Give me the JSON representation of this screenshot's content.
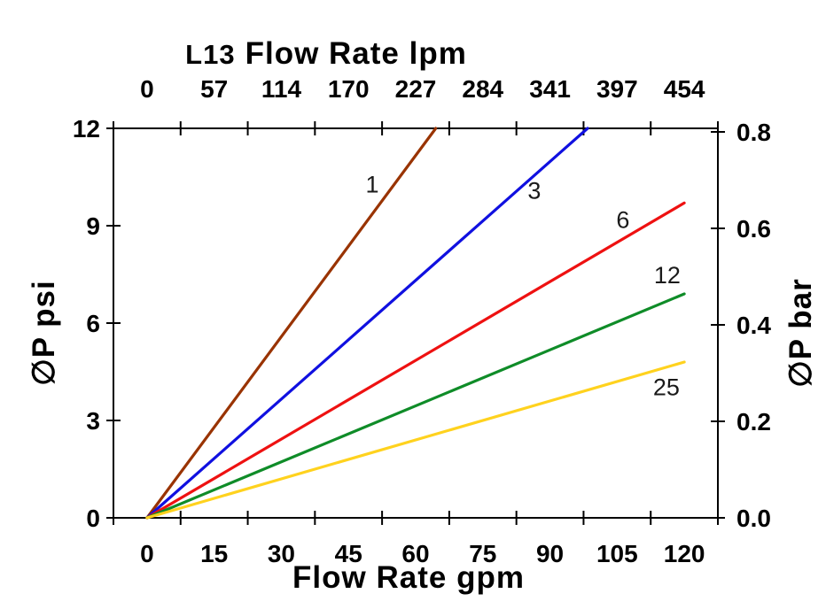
{
  "title": {
    "prefix": "L13",
    "main": "Flow Rate lpm"
  },
  "axes": {
    "top": {
      "tick_labels": [
        "0",
        "57",
        "114",
        "170",
        "227",
        "284",
        "341",
        "397",
        "454"
      ]
    },
    "bottom": {
      "title": "Flow Rate gpm",
      "tick_labels": [
        "0",
        "15",
        "30",
        "45",
        "60",
        "75",
        "90",
        "105",
        "120"
      ]
    },
    "left": {
      "title": "∅P psi",
      "tick_labels": [
        "12",
        "9",
        "6",
        "3",
        "0"
      ],
      "tick_values": [
        12,
        9,
        6,
        3,
        0
      ]
    },
    "right": {
      "title": "∅P bar",
      "tick_labels": [
        "0.8",
        "0.6",
        "0.4",
        "0.2",
        "0.0"
      ],
      "tick_values": [
        0.8,
        0.6,
        0.4,
        0.2,
        0.0
      ]
    }
  },
  "chart_data": {
    "type": "line",
    "title": "L13 Flow Rate lpm",
    "xlabel_bottom": "Flow Rate gpm",
    "xlabel_top": "Flow Rate lpm",
    "ylabel_left": "∅P psi",
    "ylabel_right": "∅P bar",
    "x_gpm_ticks": [
      0,
      15,
      30,
      45,
      60,
      75,
      90,
      105,
      120
    ],
    "x_lpm_ticks": [
      0,
      57,
      114,
      170,
      227,
      284,
      341,
      397,
      454
    ],
    "y_psi_range": [
      0,
      12
    ],
    "y_bar_range": [
      0.0,
      0.8
    ],
    "y_psi_ticks": [
      0,
      3,
      6,
      9,
      12
    ],
    "y_bar_ticks": [
      0.0,
      0.2,
      0.4,
      0.6,
      0.8
    ],
    "grid": false,
    "series": [
      {
        "name": "1",
        "color": "#993300",
        "points": [
          [
            0,
            0
          ],
          [
            64.5,
            12
          ]
        ],
        "label_pos": {
          "gpm": 50.3,
          "psi": 10.3
        }
      },
      {
        "name": "3",
        "color": "#1010E0",
        "points": [
          [
            0,
            0
          ],
          [
            98.4,
            12
          ]
        ],
        "label_pos": {
          "gpm": 86.5,
          "psi": 10.1
        }
      },
      {
        "name": "6",
        "color": "#EE1111",
        "points": [
          [
            0,
            0
          ],
          [
            120,
            9.7
          ]
        ],
        "label_pos": {
          "gpm": 106.3,
          "psi": 9.2
        }
      },
      {
        "name": "12",
        "color": "#0F8C28",
        "points": [
          [
            0,
            0
          ],
          [
            120,
            6.9
          ]
        ],
        "label_pos": {
          "gpm": 116.2,
          "psi": 7.5
        }
      },
      {
        "name": "25",
        "color": "#FFD21E",
        "points": [
          [
            0,
            0
          ],
          [
            120,
            4.8
          ]
        ],
        "label_pos": {
          "gpm": 116.0,
          "psi": 4.05
        }
      }
    ]
  }
}
